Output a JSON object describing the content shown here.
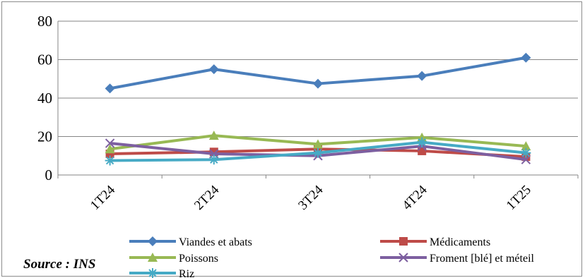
{
  "chart_data": {
    "type": "line",
    "categories": [
      "1T24",
      "2T24",
      "3T24",
      "4T24",
      "1T25"
    ],
    "ylim": [
      0,
      80
    ],
    "yticks": [
      0,
      20,
      40,
      60,
      80
    ],
    "grid": "horizontal",
    "legend_position": "bottom",
    "series": [
      {
        "name": "Viandes et abats",
        "values": [
          45,
          55,
          47.5,
          51.5,
          61
        ],
        "color": "#4a7ebb",
        "marker": "diamond"
      },
      {
        "name": "Médicaments",
        "values": [
          11,
          12,
          13.5,
          12.5,
          9.5
        ],
        "color": "#be4b48",
        "marker": "square"
      },
      {
        "name": "Poissons",
        "values": [
          13.5,
          20.5,
          16,
          19.5,
          15
        ],
        "color": "#98b954",
        "marker": "triangle"
      },
      {
        "name": "Froment [blé] et méteil",
        "values": [
          16.5,
          11,
          10,
          15,
          8
        ],
        "color": "#7d5fa0",
        "marker": "x"
      },
      {
        "name": "Riz",
        "values": [
          7.5,
          8,
          11.5,
          17,
          11.5
        ],
        "color": "#46aac5",
        "marker": "star"
      }
    ]
  },
  "source_note": "Source : INS"
}
